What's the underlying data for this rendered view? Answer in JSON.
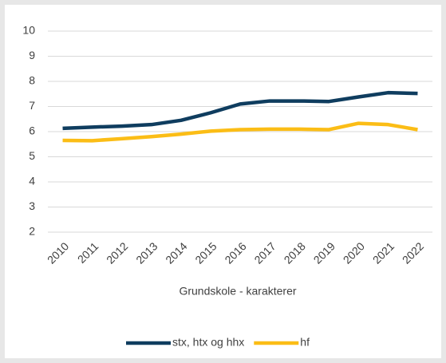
{
  "chart_data": {
    "type": "line",
    "x_label": "Grundskole - karakterer",
    "categories": [
      "2010",
      "2011",
      "2012",
      "2013",
      "2014",
      "2015",
      "2016",
      "2017",
      "2018",
      "2019",
      "2020",
      "2021",
      "2022"
    ],
    "series": [
      {
        "name": "stx, htx og hhx",
        "color": "#0f3d5f",
        "values": [
          6.13,
          6.18,
          6.22,
          6.28,
          6.45,
          6.75,
          7.1,
          7.22,
          7.22,
          7.2,
          7.38,
          7.55,
          7.52
        ]
      },
      {
        "name": "hf",
        "color": "#fbbd16",
        "values": [
          5.65,
          5.64,
          5.72,
          5.8,
          5.9,
          6.02,
          6.08,
          6.1,
          6.1,
          6.08,
          6.33,
          6.28,
          6.08
        ]
      }
    ],
    "ylim": [
      2,
      10
    ],
    "yticks": [
      2,
      3,
      4,
      5,
      6,
      7,
      8,
      9,
      10
    ],
    "grid": true,
    "legend": "bottom"
  }
}
